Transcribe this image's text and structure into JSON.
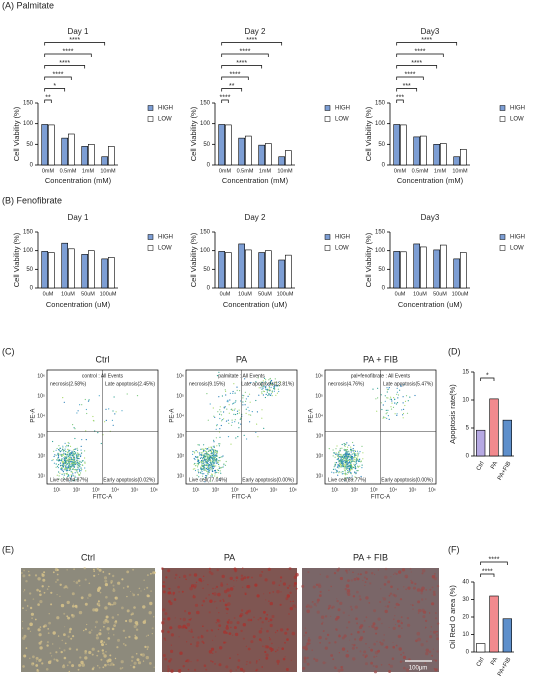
{
  "panel_labels": {
    "A": "(A) Palmitate",
    "B": "(B) Fenofibrate",
    "C": "(C)",
    "D": "(D)",
    "E": "(E)",
    "F": "(F)"
  },
  "chart_data": [
    {
      "type": "bar",
      "title": "Day 1",
      "categories": [
        "0mM",
        "0.5mM",
        "1mM",
        "10mM"
      ],
      "series": [
        {
          "name": "HIGH",
          "color": "#7d9ed4",
          "values": [
            98,
            65,
            45,
            20
          ]
        },
        {
          "name": "LOW",
          "color": "#ffffff",
          "values": [
            97,
            75,
            50,
            45
          ]
        }
      ],
      "xlabel": "Concentration (mM)",
      "ylabel": "Cell Viability (%)",
      "ylim": [
        0,
        150
      ],
      "yticks": [
        0,
        50,
        100,
        150
      ],
      "brackets": [
        "**",
        "*",
        "****",
        "****",
        "****",
        "****"
      ]
    },
    {
      "type": "bar",
      "title": "Day 2",
      "categories": [
        "0mM",
        "0.5mM",
        "1mM",
        "10mM"
      ],
      "series": [
        {
          "name": "HIGH",
          "color": "#7d9ed4",
          "values": [
            98,
            65,
            48,
            20
          ]
        },
        {
          "name": "LOW",
          "color": "#ffffff",
          "values": [
            97,
            70,
            52,
            35
          ]
        }
      ],
      "xlabel": "Concentration (mM)",
      "ylabel": "Cell Viability (%)",
      "ylim": [
        0,
        150
      ],
      "yticks": [
        0,
        50,
        100,
        150
      ],
      "brackets": [
        "****",
        "**",
        "****",
        "****",
        "****",
        "****"
      ]
    },
    {
      "type": "bar",
      "title": "Day3",
      "categories": [
        "0mM",
        "0.5mM",
        "1mM",
        "10mM"
      ],
      "series": [
        {
          "name": "HIGH",
          "color": "#7d9ed4",
          "values": [
            98,
            68,
            50,
            20
          ]
        },
        {
          "name": "LOW",
          "color": "#ffffff",
          "values": [
            97,
            70,
            52,
            38
          ]
        }
      ],
      "xlabel": "Concentration (mM)",
      "ylabel": "Cell Viability (%)",
      "ylim": [
        0,
        150
      ],
      "yticks": [
        0,
        50,
        100,
        150
      ],
      "brackets": [
        "***",
        "***",
        "****",
        "****",
        "****",
        "****"
      ]
    },
    {
      "type": "bar",
      "title": "Day 1",
      "categories": [
        "0uM",
        "10uM",
        "50uM",
        "100uM"
      ],
      "series": [
        {
          "name": "HIGH",
          "color": "#7d9ed4",
          "values": [
            98,
            120,
            90,
            78
          ]
        },
        {
          "name": "LOW",
          "color": "#ffffff",
          "values": [
            95,
            105,
            100,
            82
          ]
        }
      ],
      "xlabel": "Concentration (uM)",
      "ylabel": "Cell Viability (%)",
      "ylim": [
        0,
        150
      ],
      "yticks": [
        0,
        50,
        100,
        150
      ]
    },
    {
      "type": "bar",
      "title": "Day 2",
      "categories": [
        "0uM",
        "10uM",
        "50uM",
        "100uM"
      ],
      "series": [
        {
          "name": "HIGH",
          "color": "#7d9ed4",
          "values": [
            98,
            118,
            95,
            75
          ]
        },
        {
          "name": "LOW",
          "color": "#ffffff",
          "values": [
            95,
            102,
            100,
            88
          ]
        }
      ],
      "xlabel": "Concentration (uM)",
      "ylabel": "Cell Viability (%)",
      "ylim": [
        0,
        150
      ],
      "yticks": [
        0,
        50,
        100,
        150
      ]
    },
    {
      "type": "bar",
      "title": "Day3",
      "categories": [
        "0uM",
        "10uM",
        "50uM",
        "100uM"
      ],
      "series": [
        {
          "name": "HIGH",
          "color": "#7d9ed4",
          "values": [
            98,
            118,
            102,
            78
          ]
        },
        {
          "name": "LOW",
          "color": "#ffffff",
          "values": [
            97,
            110,
            115,
            95
          ]
        }
      ],
      "xlabel": "Concentration (uM)",
      "ylabel": "Cell Viability (%)",
      "ylim": [
        0,
        150
      ],
      "yticks": [
        0,
        50,
        100,
        150
      ]
    },
    {
      "type": "bar",
      "categories": [
        "Ctrl",
        "PA",
        "PA+FIB"
      ],
      "values": [
        4.6,
        10.2,
        6.4
      ],
      "colors": [
        "#b6a9e3",
        "#f28a8e",
        "#5e8fcb"
      ],
      "ylabel": "Apoptosis rate(%)",
      "ylim": [
        0,
        15
      ],
      "yticks": [
        0,
        5,
        10,
        15
      ],
      "brackets": [
        "*"
      ]
    },
    {
      "type": "bar",
      "categories": [
        "Ctrl",
        "PA",
        "PA+FIB"
      ],
      "values": [
        4.8,
        32,
        19
      ],
      "colors": [
        "#ffffff",
        "#f28a8e",
        "#5e8fcb"
      ],
      "ylabel": "Oil Red O area (%)",
      "ylim": [
        0,
        40
      ],
      "yticks": [
        0,
        10,
        20,
        30,
        40
      ],
      "brackets": [
        "****",
        "****"
      ]
    }
  ],
  "flow_axes": {
    "x": "FITC-A",
    "y": "PE-A",
    "ticks": [
      "10¹",
      "10²",
      "10³",
      "10⁴",
      "10⁵",
      "10⁶"
    ]
  },
  "flow_plots": [
    {
      "title": "Ctrl",
      "header": "control : All Events",
      "quadrants": [
        "necrosis(2.58%)",
        "Late apoptosis(2.45%)",
        "Live cell(94.87%)",
        "Early apoptosis(0.02%)"
      ]
    },
    {
      "title": "PA",
      "header": "palmitate : All Events",
      "quadrants": [
        "necrosis(9.15%)",
        "Late apoptosis(13.81%)",
        "Live cell(77.04%)",
        "Early apoptosis(0.00%)"
      ]
    },
    {
      "title": "PA + FIB",
      "header": "pal+fenofibrate : All Events",
      "quadrants": [
        "necrosis(4.76%)",
        "Late apoptosis(5.47%)",
        "Live cell(89.77%)",
        "Early apoptosis(0.00%)"
      ]
    }
  ],
  "micrographs": [
    {
      "title": "Ctrl"
    },
    {
      "title": "PA"
    },
    {
      "title": "PA + FIB"
    }
  ],
  "scale_bar": "100μm"
}
